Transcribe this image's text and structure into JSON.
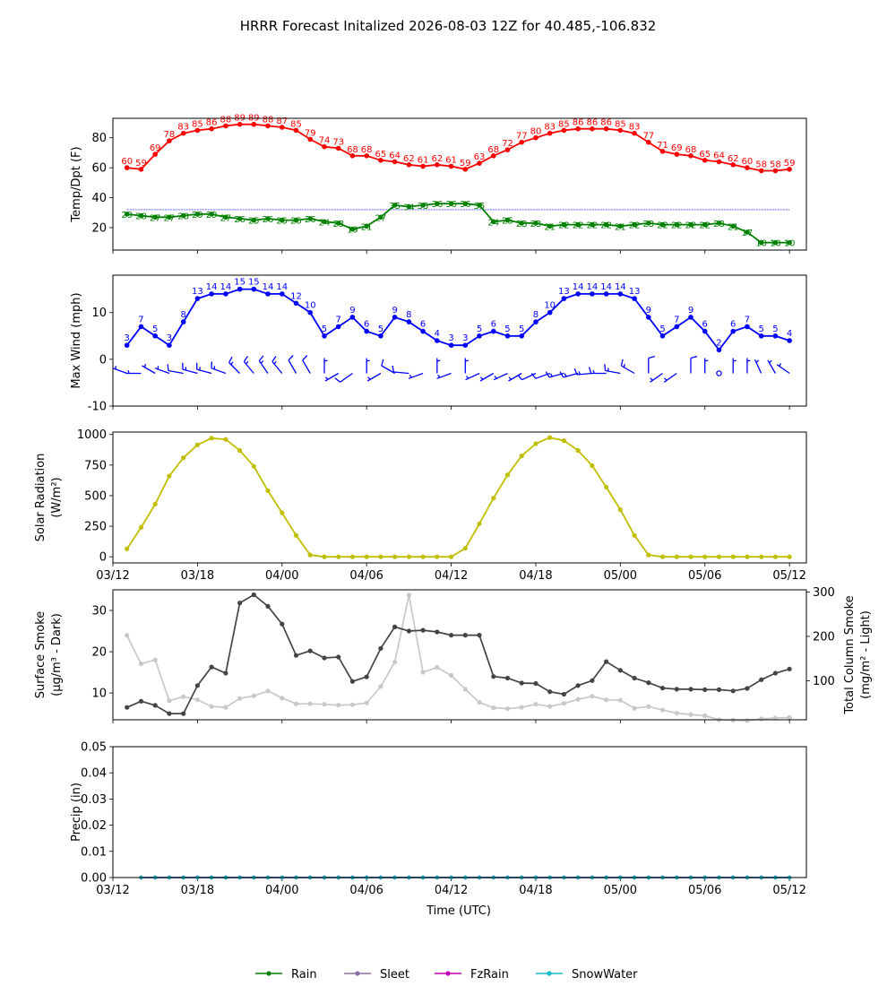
{
  "title": "HRRR Forecast Initalized 2026-08-03 12Z for 40.485,-106.832",
  "xlabel": "Time (UTC)",
  "x_tick_labels": [
    "03/12",
    "03/18",
    "04/00",
    "04/06",
    "04/12",
    "04/18",
    "05/00",
    "05/06",
    "05/12"
  ],
  "colors": {
    "temp": "#ff0000",
    "dewpoint": "#008000",
    "wind": "#0000ff",
    "solar": "#bfbf00",
    "smoke_dark": "#444444",
    "smoke_light": "#c8c8c8",
    "freezing_line": "#0000ff"
  },
  "legend": [
    {
      "label": "Rain",
      "color": "#008000"
    },
    {
      "label": "Sleet",
      "color": "#8c6fa6"
    },
    {
      "label": "FzRain",
      "color": "#bf00bf"
    },
    {
      "label": "SnowWater",
      "color": "#17becf"
    }
  ],
  "chart_data": [
    {
      "type": "line",
      "ylabel": "Temp/Dpt (F)",
      "x_hours": [
        1,
        2,
        3,
        4,
        5,
        6,
        7,
        8,
        9,
        10,
        11,
        12,
        13,
        14,
        15,
        16,
        17,
        18,
        19,
        20,
        21,
        22,
        23,
        24,
        25,
        26,
        27,
        28,
        29,
        30,
        31,
        32,
        33,
        34,
        35,
        36,
        37,
        38,
        39,
        40,
        41,
        42,
        43,
        44,
        45,
        46,
        47,
        48
      ],
      "yticks": [
        20,
        40,
        60,
        80
      ],
      "ylim": [
        5,
        93
      ],
      "reference_line_y": 32,
      "series": [
        {
          "key": "temp",
          "values": [
            60,
            59,
            69,
            78,
            83,
            85,
            86,
            88,
            89,
            89,
            88,
            87,
            85,
            79,
            74,
            73,
            68,
            68,
            65,
            64,
            62,
            61,
            62,
            61,
            59,
            63,
            68,
            72,
            77,
            80,
            83,
            85,
            86,
            86,
            86,
            85,
            83,
            77,
            71,
            69,
            68,
            65,
            64,
            62,
            60,
            58,
            58,
            59
          ]
        },
        {
          "key": "dewpoint",
          "values": [
            29,
            28,
            27,
            27,
            28,
            29,
            29,
            27,
            26,
            25,
            26,
            25,
            25,
            26,
            24,
            23,
            19,
            21,
            27,
            35,
            34,
            35,
            36,
            36,
            36,
            35,
            24,
            25,
            23,
            23,
            21,
            22,
            22,
            22,
            22,
            21,
            22,
            23,
            22,
            22,
            22,
            22,
            23,
            21,
            17,
            10,
            10,
            10
          ]
        }
      ]
    },
    {
      "type": "line",
      "ylabel": "Max Wind (mph)",
      "x_hours": [
        1,
        2,
        3,
        4,
        5,
        6,
        7,
        8,
        9,
        10,
        11,
        12,
        13,
        14,
        15,
        16,
        17,
        18,
        19,
        20,
        21,
        22,
        23,
        24,
        25,
        26,
        27,
        28,
        29,
        30,
        31,
        32,
        33,
        34,
        35,
        36,
        37,
        38,
        39,
        40,
        41,
        42,
        43,
        44,
        45,
        46,
        47,
        48
      ],
      "yticks": [
        -10,
        0,
        10
      ],
      "ylim": [
        -10,
        18
      ],
      "series": [
        {
          "key": "wind",
          "values": [
            3,
            7,
            5,
            3,
            8,
            13,
            14,
            14,
            15,
            15,
            14,
            14,
            12,
            10,
            5,
            7,
            9,
            6,
            5,
            9,
            8,
            6,
            4,
            3,
            3,
            5,
            6,
            5,
            5,
            8,
            10,
            13,
            14,
            14,
            14,
            14,
            13,
            9,
            5,
            7,
            9,
            6,
            2,
            6,
            7,
            5,
            5,
            4
          ]
        }
      ],
      "barb_directions_deg": [
        290,
        270,
        300,
        290,
        280,
        285,
        285,
        290,
        315,
        320,
        325,
        320,
        330,
        330,
        0,
        240,
        235,
        0,
        240,
        300,
        275,
        250,
        0,
        250,
        0,
        245,
        240,
        245,
        240,
        245,
        250,
        255,
        255,
        265,
        270,
        280,
        300,
        0,
        235,
        235,
        0,
        0,
        245,
        0,
        0,
        335,
        330,
        305
      ]
    },
    {
      "type": "line",
      "ylabel": "Solar Radiation",
      "ylabel_unit": "(W/m²)",
      "x_hours": [
        1,
        2,
        3,
        4,
        5,
        6,
        7,
        8,
        9,
        10,
        11,
        12,
        13,
        14,
        15,
        16,
        17,
        18,
        19,
        20,
        21,
        22,
        23,
        24,
        25,
        26,
        27,
        28,
        29,
        30,
        31,
        32,
        33,
        34,
        35,
        36,
        37,
        38,
        39,
        40,
        41,
        42,
        43,
        44,
        45,
        46,
        47,
        48
      ],
      "yticks": [
        0,
        250,
        500,
        750,
        1000
      ],
      "ylim": [
        -50,
        1020
      ],
      "series": [
        {
          "key": "solar",
          "values": [
            65,
            240,
            430,
            660,
            810,
            915,
            970,
            960,
            870,
            740,
            540,
            360,
            175,
            15,
            0,
            0,
            0,
            0,
            0,
            0,
            0,
            0,
            0,
            0,
            70,
            270,
            480,
            670,
            825,
            925,
            975,
            950,
            870,
            745,
            570,
            385,
            175,
            15,
            0,
            0,
            0,
            0,
            0,
            0,
            0,
            0,
            0,
            0
          ]
        }
      ]
    },
    {
      "type": "line",
      "ylabel": "Surface Smoke",
      "ylabel_unit": "(μg/m³ - Dark)",
      "y2label": "Total Column Smoke",
      "y2label_unit": "(mg/m² - Light)",
      "x_hours": [
        1,
        2,
        3,
        4,
        5,
        6,
        7,
        8,
        9,
        10,
        11,
        12,
        13,
        14,
        15,
        16,
        17,
        18,
        19,
        20,
        21,
        22,
        23,
        24,
        25,
        26,
        27,
        28,
        29,
        30,
        31,
        32,
        33,
        34,
        35,
        36,
        37,
        38,
        39,
        40,
        41,
        42,
        43,
        44,
        45,
        46,
        47,
        48
      ],
      "yticks": [
        10,
        20,
        30
      ],
      "ylim": [
        3.5,
        35
      ],
      "y2ticks": [
        100,
        200,
        300
      ],
      "y2lim": [
        12,
        305
      ],
      "series": [
        {
          "key": "smoke_dark",
          "axis": "left",
          "values": [
            6.5,
            8,
            7,
            5,
            5,
            11.8,
            16.3,
            14.8,
            31.8,
            33.8,
            31,
            26.7,
            19.1,
            20.2,
            18.5,
            18.7,
            12.8,
            13.9,
            20.8,
            26,
            25,
            25.2,
            24.8,
            24,
            24,
            24,
            14,
            13.6,
            12.4,
            12.3,
            10.3,
            9.7,
            11.8,
            13,
            17.6,
            15.5,
            13.6,
            12.5,
            11.2,
            10.9,
            10.9,
            10.8,
            10.8,
            10.5,
            11.1,
            13.2,
            14.8,
            15.8
          ]
        },
        {
          "key": "smoke_light",
          "axis": "right",
          "values": [
            202,
            138,
            147,
            55,
            64,
            57,
            42,
            40,
            60,
            66,
            77,
            61,
            48,
            48,
            47,
            45,
            46,
            50,
            87,
            142,
            293,
            119,
            130,
            112,
            81,
            51,
            39,
            37,
            40,
            47,
            42,
            49,
            58,
            65,
            57,
            56,
            38,
            42,
            34,
            27,
            24,
            21,
            12,
            11,
            10,
            14,
            16,
            17
          ]
        }
      ]
    },
    {
      "type": "line",
      "ylabel": "Precip (in)",
      "x_hours": [
        2,
        3,
        4,
        5,
        6,
        7,
        8,
        9,
        10,
        11,
        12,
        13,
        14,
        15,
        16,
        17,
        18,
        19,
        20,
        21,
        22,
        23,
        24,
        25,
        26,
        27,
        28,
        29,
        30,
        31,
        32,
        33,
        34,
        35,
        36,
        37,
        38,
        39,
        40,
        41,
        42,
        43,
        44,
        45,
        46,
        47,
        48
      ],
      "yticks": [
        "0.00",
        "0.01",
        "0.02",
        "0.03",
        "0.04",
        "0.05"
      ],
      "ylim": [
        0,
        0.05
      ],
      "series": [
        {
          "name": "Rain",
          "values": [
            0,
            0,
            0,
            0,
            0,
            0,
            0,
            0,
            0,
            0,
            0,
            0,
            0,
            0,
            0,
            0,
            0,
            0,
            0,
            0,
            0,
            0,
            0,
            0,
            0,
            0,
            0,
            0,
            0,
            0,
            0,
            0,
            0,
            0,
            0,
            0,
            0,
            0,
            0,
            0,
            0,
            0,
            0,
            0,
            0,
            0,
            0
          ]
        },
        {
          "name": "Sleet",
          "values": [
            0,
            0,
            0,
            0,
            0,
            0,
            0,
            0,
            0,
            0,
            0,
            0,
            0,
            0,
            0,
            0,
            0,
            0,
            0,
            0,
            0,
            0,
            0,
            0,
            0,
            0,
            0,
            0,
            0,
            0,
            0,
            0,
            0,
            0,
            0,
            0,
            0,
            0,
            0,
            0,
            0,
            0,
            0,
            0,
            0,
            0,
            0
          ]
        },
        {
          "name": "FzRain",
          "values": [
            0,
            0,
            0,
            0,
            0,
            0,
            0,
            0,
            0,
            0,
            0,
            0,
            0,
            0,
            0,
            0,
            0,
            0,
            0,
            0,
            0,
            0,
            0,
            0,
            0,
            0,
            0,
            0,
            0,
            0,
            0,
            0,
            0,
            0,
            0,
            0,
            0,
            0,
            0,
            0,
            0,
            0,
            0,
            0,
            0,
            0,
            0
          ]
        },
        {
          "name": "SnowWater",
          "values": [
            0,
            0,
            0,
            0,
            0,
            0,
            0,
            0,
            0,
            0,
            0,
            0,
            0,
            0,
            0,
            0,
            0,
            0,
            0,
            0,
            0,
            0,
            0,
            0,
            0,
            0,
            0,
            0,
            0,
            0,
            0,
            0,
            0,
            0,
            0,
            0,
            0,
            0,
            0,
            0,
            0,
            0,
            0,
            0,
            0,
            0,
            0
          ]
        }
      ]
    }
  ]
}
